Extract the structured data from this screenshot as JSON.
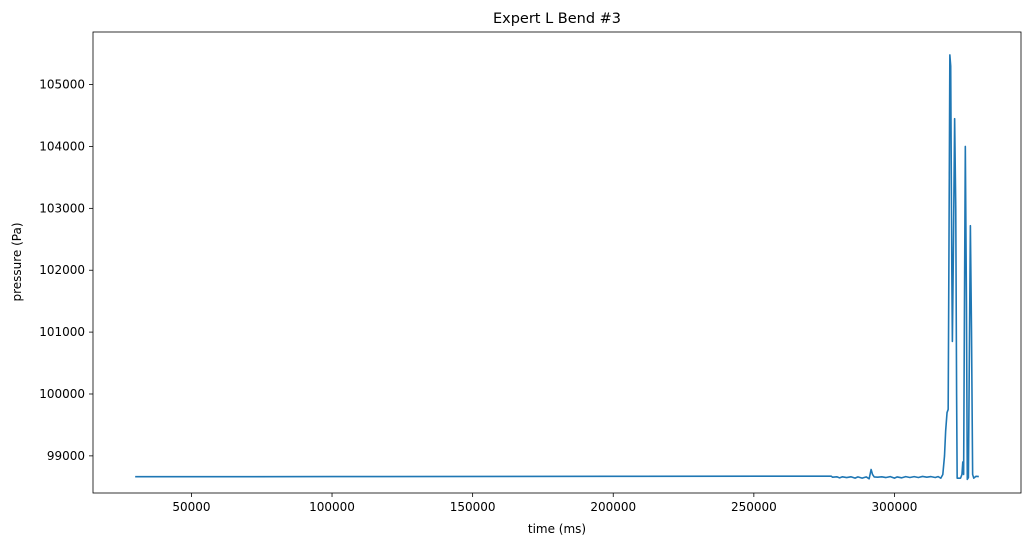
{
  "chart_data": {
    "type": "line",
    "title": "Expert L Bend #3",
    "xlabel": "time (ms)",
    "ylabel": "pressure (Pa)",
    "xlim": [
      15000,
      345000
    ],
    "ylim": [
      98400,
      105850
    ],
    "xticks": [
      50000,
      100000,
      150000,
      200000,
      250000,
      300000
    ],
    "yticks": [
      99000,
      100000,
      101000,
      102000,
      103000,
      104000,
      105000
    ],
    "grid": false,
    "series": [
      {
        "color": "#1f77b4",
        "points": [
          [
            30000,
            98663
          ],
          [
            100000,
            98665
          ],
          [
            200000,
            98670
          ],
          [
            277500,
            98672
          ],
          [
            278000,
            98655
          ],
          [
            279500,
            98662
          ],
          [
            280500,
            98645
          ],
          [
            281500,
            98662
          ],
          [
            283000,
            98650
          ],
          [
            284500,
            98662
          ],
          [
            286000,
            98640
          ],
          [
            287000,
            98660
          ],
          [
            288500,
            98640
          ],
          [
            290000,
            98660
          ],
          [
            291000,
            98630
          ],
          [
            291700,
            98780
          ],
          [
            292200,
            98700
          ],
          [
            292800,
            98660
          ],
          [
            294000,
            98655
          ],
          [
            295500,
            98662
          ],
          [
            297000,
            98650
          ],
          [
            298500,
            98665
          ],
          [
            300000,
            98640
          ],
          [
            301000,
            98660
          ],
          [
            302500,
            98645
          ],
          [
            304000,
            98665
          ],
          [
            305500,
            98650
          ],
          [
            307000,
            98665
          ],
          [
            308500,
            98650
          ],
          [
            310000,
            98668
          ],
          [
            311500,
            98655
          ],
          [
            313000,
            98665
          ],
          [
            314500,
            98650
          ],
          [
            315500,
            98665
          ],
          [
            316500,
            98640
          ],
          [
            317200,
            98700
          ],
          [
            317800,
            99000
          ],
          [
            318200,
            99400
          ],
          [
            318700,
            99700
          ],
          [
            319100,
            99750
          ],
          [
            319400,
            102500
          ],
          [
            319700,
            105480
          ],
          [
            320000,
            105300
          ],
          [
            320400,
            102000
          ],
          [
            320600,
            100850
          ],
          [
            321000,
            102500
          ],
          [
            321400,
            104450
          ],
          [
            321800,
            103000
          ],
          [
            322100,
            100000
          ],
          [
            322300,
            98640
          ],
          [
            323500,
            98640
          ],
          [
            324000,
            98700
          ],
          [
            324300,
            98900
          ],
          [
            324600,
            98700
          ],
          [
            324900,
            101500
          ],
          [
            325200,
            104000
          ],
          [
            325600,
            101500
          ],
          [
            325900,
            98620
          ],
          [
            326300,
            98650
          ],
          [
            326700,
            101000
          ],
          [
            327000,
            102720
          ],
          [
            327400,
            101000
          ],
          [
            327800,
            98700
          ],
          [
            328200,
            98640
          ],
          [
            329000,
            98670
          ],
          [
            330000,
            98665
          ]
        ]
      }
    ]
  }
}
